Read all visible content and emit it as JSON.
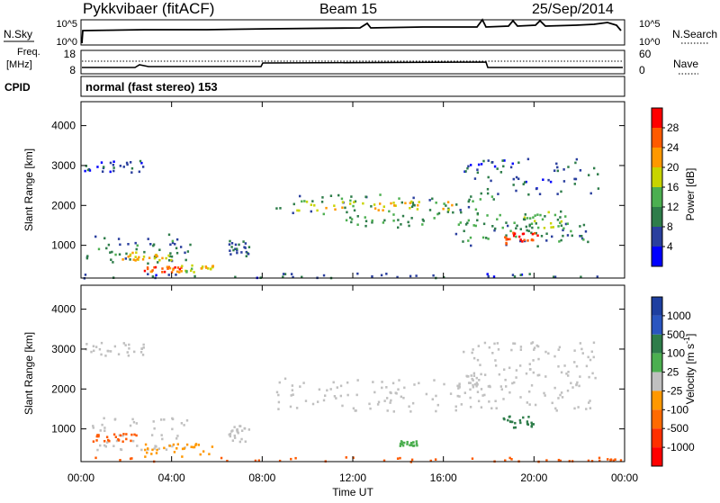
{
  "header": {
    "title": "Pykkvibaer (fitACF)",
    "beam": "Beam 15",
    "date": "25/Sep/2014"
  },
  "nsky_panel": {
    "left_label": "N.Sky",
    "left_ticks": [
      "10^5",
      "10^0"
    ],
    "right_ticks": [
      "10^5",
      "10^0"
    ],
    "right_label": "N.Search"
  },
  "freq_panel": {
    "left_label_1": "Freq.",
    "left_label_2": "[MHz]",
    "left_ticks": [
      "18",
      "8"
    ],
    "right_ticks": [
      "60",
      "0"
    ],
    "right_label": "Nave"
  },
  "cpid": {
    "label": "CPID",
    "text": "normal (fast stereo) 153"
  },
  "colors": {
    "power_scale": [
      "#0000ff",
      "#2a3f9e",
      "#2e7d4a",
      "#4caf50",
      "#c8d400",
      "#ff9800",
      "#ff5a00",
      "#ff0000"
    ],
    "velocity_scale": [
      "#ff0000",
      "#ff5a00",
      "#ff9800",
      "#c0c0c0",
      "#c0c0c0",
      "#4caf50",
      "#2e7d4a",
      "#1e3fa0"
    ],
    "ground_scatter": "#c0c0c0"
  },
  "chart_data": [
    {
      "type": "heatmap",
      "name": "power",
      "ylabel": "Slant Range [km]",
      "yticks": [
        1000,
        2000,
        3000,
        4000
      ],
      "ylim": [
        180,
        4600
      ],
      "xlim": [
        0,
        24
      ],
      "colorbar": {
        "label": "Power [dB]",
        "ticks": [
          "4",
          "8",
          "12",
          "16",
          "20",
          "24",
          "28"
        ],
        "range": [
          0,
          32
        ]
      },
      "regions": [
        {
          "t0": 0.2,
          "t1": 4.8,
          "r0": 500,
          "r1": 1300,
          "level": 9
        },
        {
          "t0": 1.5,
          "t1": 4.0,
          "r0": 650,
          "r1": 850,
          "level": 20
        },
        {
          "t0": 2.7,
          "t1": 4.4,
          "r0": 350,
          "r1": 500,
          "level": 26
        },
        {
          "t0": 4.2,
          "t1": 5.8,
          "r0": 350,
          "r1": 550,
          "level": 18
        },
        {
          "t0": 0.1,
          "t1": 2.8,
          "r0": 2850,
          "r1": 3150,
          "level": 6
        },
        {
          "t0": 6.5,
          "t1": 7.4,
          "r0": 750,
          "r1": 1150,
          "level": 8
        },
        {
          "t0": 8.5,
          "t1": 18.2,
          "r0": 1800,
          "r1": 2300,
          "level": 10
        },
        {
          "t0": 9.5,
          "t1": 16.8,
          "r0": 1900,
          "r1": 2150,
          "level": 20
        },
        {
          "t0": 11.5,
          "t1": 20.5,
          "r0": 1450,
          "r1": 1800,
          "level": 12
        },
        {
          "t0": 16.5,
          "t1": 22.5,
          "r0": 1000,
          "r1": 1600,
          "level": 10
        },
        {
          "t0": 18.6,
          "t1": 20.2,
          "r0": 1050,
          "r1": 1350,
          "level": 28
        },
        {
          "t0": 19.5,
          "t1": 21.5,
          "r0": 1450,
          "r1": 1900,
          "level": 14
        },
        {
          "t0": 16.8,
          "t1": 22.8,
          "r0": 2300,
          "r1": 3200,
          "level": 7
        },
        {
          "t0": 0.0,
          "t1": 23.9,
          "r0": 200,
          "r1": 320,
          "level": 7
        }
      ]
    },
    {
      "type": "heatmap",
      "name": "velocity",
      "ylabel": "Slant Range [km]",
      "yticks": [
        1000,
        2000,
        3000,
        4000
      ],
      "ylim": [
        180,
        4600
      ],
      "xlim": [
        0,
        24
      ],
      "xticks": [
        "00:00",
        "04:00",
        "08:00",
        "12:00",
        "16:00",
        "20:00",
        "00:00"
      ],
      "xlabel": "Time UT",
      "colorbar": {
        "label": "Velocity [m s^-1]",
        "ticks": [
          "1000",
          "500",
          "100",
          "25",
          "-25",
          "-100",
          "-500",
          "-1000"
        ]
      },
      "regions": [
        {
          "t0": 0.2,
          "t1": 4.8,
          "r0": 500,
          "r1": 1300,
          "cat": "gs"
        },
        {
          "t0": 0.1,
          "t1": 2.8,
          "r0": 2850,
          "r1": 3200,
          "cat": "gs"
        },
        {
          "t0": 8.5,
          "t1": 18.2,
          "r0": 1450,
          "r1": 2300,
          "cat": "gs"
        },
        {
          "t0": 16.5,
          "t1": 22.5,
          "r0": 1450,
          "r1": 2500,
          "cat": "gs"
        },
        {
          "t0": 6.5,
          "t1": 7.4,
          "r0": 700,
          "r1": 1100,
          "cat": "gs"
        },
        {
          "t0": 2.6,
          "t1": 5.8,
          "r0": 330,
          "r1": 650,
          "cat": "neg_mid"
        },
        {
          "t0": 0.5,
          "t1": 2.5,
          "r0": 700,
          "r1": 900,
          "cat": "neg_low"
        },
        {
          "t0": 18.6,
          "t1": 20.0,
          "r0": 1050,
          "r1": 1350,
          "cat": "pos_mid"
        },
        {
          "t0": 14.0,
          "t1": 14.8,
          "r0": 600,
          "r1": 720,
          "cat": "pos_low"
        },
        {
          "t0": 16.8,
          "t1": 22.8,
          "r0": 2300,
          "r1": 3200,
          "cat": "gs"
        },
        {
          "t0": 0.0,
          "t1": 23.9,
          "r0": 200,
          "r1": 320,
          "cat": "neg_low"
        }
      ]
    }
  ]
}
